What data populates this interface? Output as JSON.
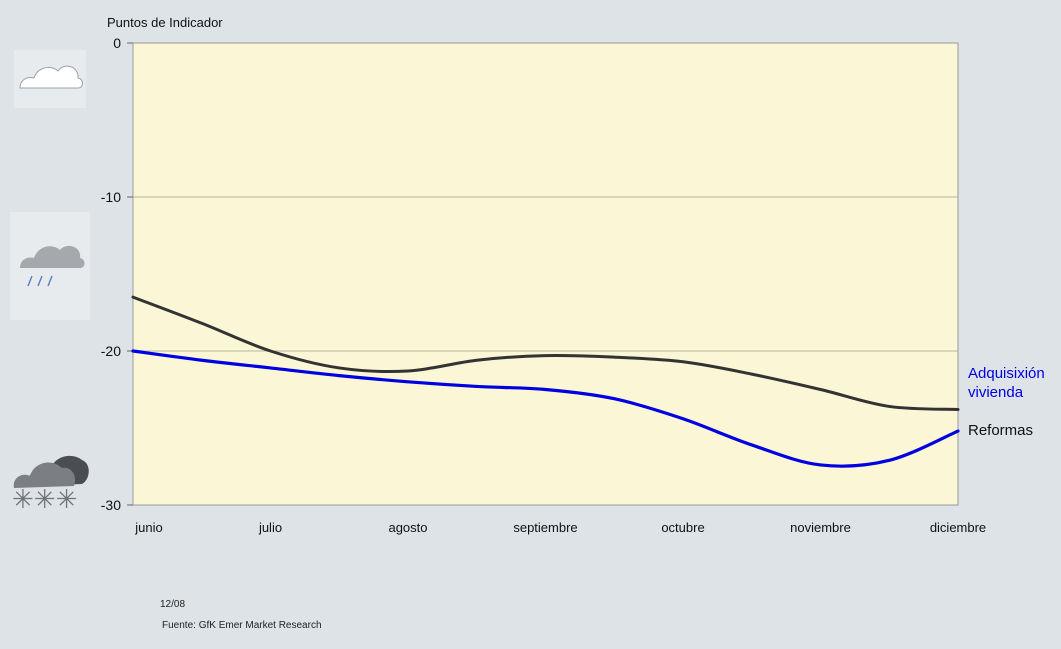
{
  "chart_data": {
    "type": "line",
    "ylabel": "Puntos de Indicador",
    "ylim": [
      -30,
      0
    ],
    "yticks": [
      0,
      -10,
      -20,
      -30
    ],
    "ytick_labels": [
      "0",
      "-10",
      "-20",
      "-30"
    ],
    "x_categories": [
      "junio",
      "julio",
      "agosto",
      "septiembre",
      "octubre",
      "noviembre",
      "diciembre"
    ],
    "grid": true,
    "series": [
      {
        "name": "Reformas",
        "color": "#333333",
        "x": [
          0,
          0.5,
          1.0,
          1.5,
          2.0,
          2.5,
          3.0,
          3.5,
          4.0,
          4.5,
          5.0,
          5.5,
          6.0
        ],
        "y": [
          -16.5,
          -18.2,
          -20.0,
          -21.1,
          -21.3,
          -20.6,
          -20.3,
          -20.4,
          -20.7,
          -21.5,
          -22.5,
          -23.6,
          -23.8
        ]
      },
      {
        "name": "Adquisixión vivienda",
        "label_lines": [
          "Adquisixión",
          "vivienda"
        ],
        "color": "#0000e0",
        "x": [
          0,
          0.5,
          1.0,
          1.5,
          2.0,
          2.5,
          3.0,
          3.5,
          4.0,
          4.5,
          5.0,
          5.5,
          6.0
        ],
        "y": [
          -20.0,
          -20.6,
          -21.1,
          -21.6,
          -22.0,
          -22.3,
          -22.5,
          -23.1,
          -24.4,
          -26.1,
          -27.4,
          -27.1,
          -25.2
        ]
      }
    ],
    "legend_placement": "right, inline labels at line ends"
  },
  "footer": {
    "date": "12/08",
    "source": "Fuente: GfK Emer Market Research"
  },
  "icons": [
    "cloud-icon",
    "rain-cloud-icon",
    "snow-cloud-icon"
  ]
}
